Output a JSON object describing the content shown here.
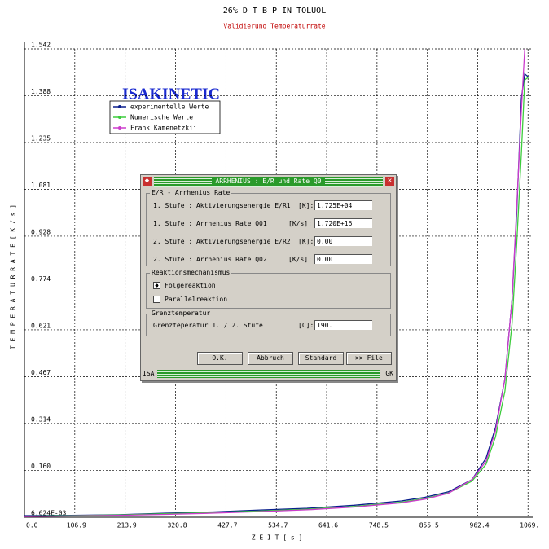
{
  "chart_data": {
    "type": "line",
    "title": "26% D T B P IN TOLUOL",
    "subtitle": "Validierung Temperaturrate",
    "logo": "ISAKINETIC",
    "x_label": "Z E I T   [ s ]",
    "y_label": "T E M P E R A T U R R A T E   [ K / s ]",
    "x": [
      0,
      100,
      200,
      300,
      400,
      500,
      600,
      700,
      800,
      850,
      900,
      950,
      980,
      1000,
      1020,
      1035,
      1045,
      1055,
      1062,
      1070
    ],
    "series": [
      {
        "name": "experimentelle  Werte",
        "color": "#0a1e8c",
        "values": [
          0.012,
          0.013,
          0.015,
          0.02,
          0.024,
          0.03,
          0.036,
          0.046,
          0.06,
          0.072,
          0.09,
          0.13,
          0.2,
          0.3,
          0.46,
          0.72,
          1.0,
          1.38,
          1.46,
          1.45
        ]
      },
      {
        "name": "Numerische Werte",
        "color": "#3ccc3c",
        "values": [
          0.01,
          0.012,
          0.014,
          0.018,
          0.022,
          0.027,
          0.033,
          0.042,
          0.056,
          0.068,
          0.086,
          0.125,
          0.18,
          0.27,
          0.42,
          0.64,
          0.9,
          1.2,
          1.44,
          1.45
        ]
      },
      {
        "name": "Frank Kamenetzkii",
        "color": "#cc3ccc",
        "values": [
          0.009,
          0.011,
          0.013,
          0.016,
          0.02,
          0.025,
          0.031,
          0.04,
          0.054,
          0.066,
          0.085,
          0.13,
          0.19,
          0.29,
          0.46,
          0.72,
          1.02,
          1.34,
          1.542,
          null
        ]
      }
    ],
    "xlim": [
      0,
      1079
    ],
    "ylim": [
      0.006624,
      1.542
    ],
    "xticks": [
      {
        "value": 0,
        "label": "0.0"
      },
      106.9,
      213.9,
      320.8,
      427.7,
      534.7,
      641.6,
      748.5,
      855.5,
      962.4,
      {
        "value": 1069,
        "label": "1069."
      }
    ],
    "yticks": [
      {
        "value": 0.006624,
        "label": "6.624E-03"
      },
      {
        "value": 0.16,
        "label": "0.160"
      },
      0.314,
      0.467,
      0.621,
      0.774,
      0.928,
      1.081,
      1.235,
      1.388,
      1.542
    ],
    "grid": true
  },
  "dialog": {
    "title": "ARRHENIUS : E/R und Rate Q0",
    "group1": {
      "title": "E/R - Arrhenius Rate",
      "rows": [
        {
          "label": "1. Stufe : Aktivierungsenergie E/R1",
          "unit": "[K]:",
          "value": "1.725E+04"
        },
        {
          "label": "1. Stufe : Arrhenius Rate Q01",
          "unit": "[K/s]:",
          "value": "1.720E+16"
        },
        {
          "label": "2. Stufe : Aktivierungsenergie E/R2",
          "unit": "[K]:",
          "value": "0.00"
        },
        {
          "label": "2. Stufe : Arrhenius Rate Q02",
          "unit": "[K/s]:",
          "value": "0.00"
        }
      ]
    },
    "group2": {
      "title": "Reaktionsmechanismus",
      "options": [
        "Folgereaktion",
        "Parallelreaktion"
      ]
    },
    "group3": {
      "title": "Grenztemperatur",
      "label": "Grenzteperatur 1. / 2. Stufe",
      "unit": "[C]:",
      "value": "190."
    },
    "buttons": [
      "O.K.",
      "Abbruch",
      "Standard",
      ">> File"
    ],
    "status": [
      "ISA",
      "GK"
    ]
  }
}
